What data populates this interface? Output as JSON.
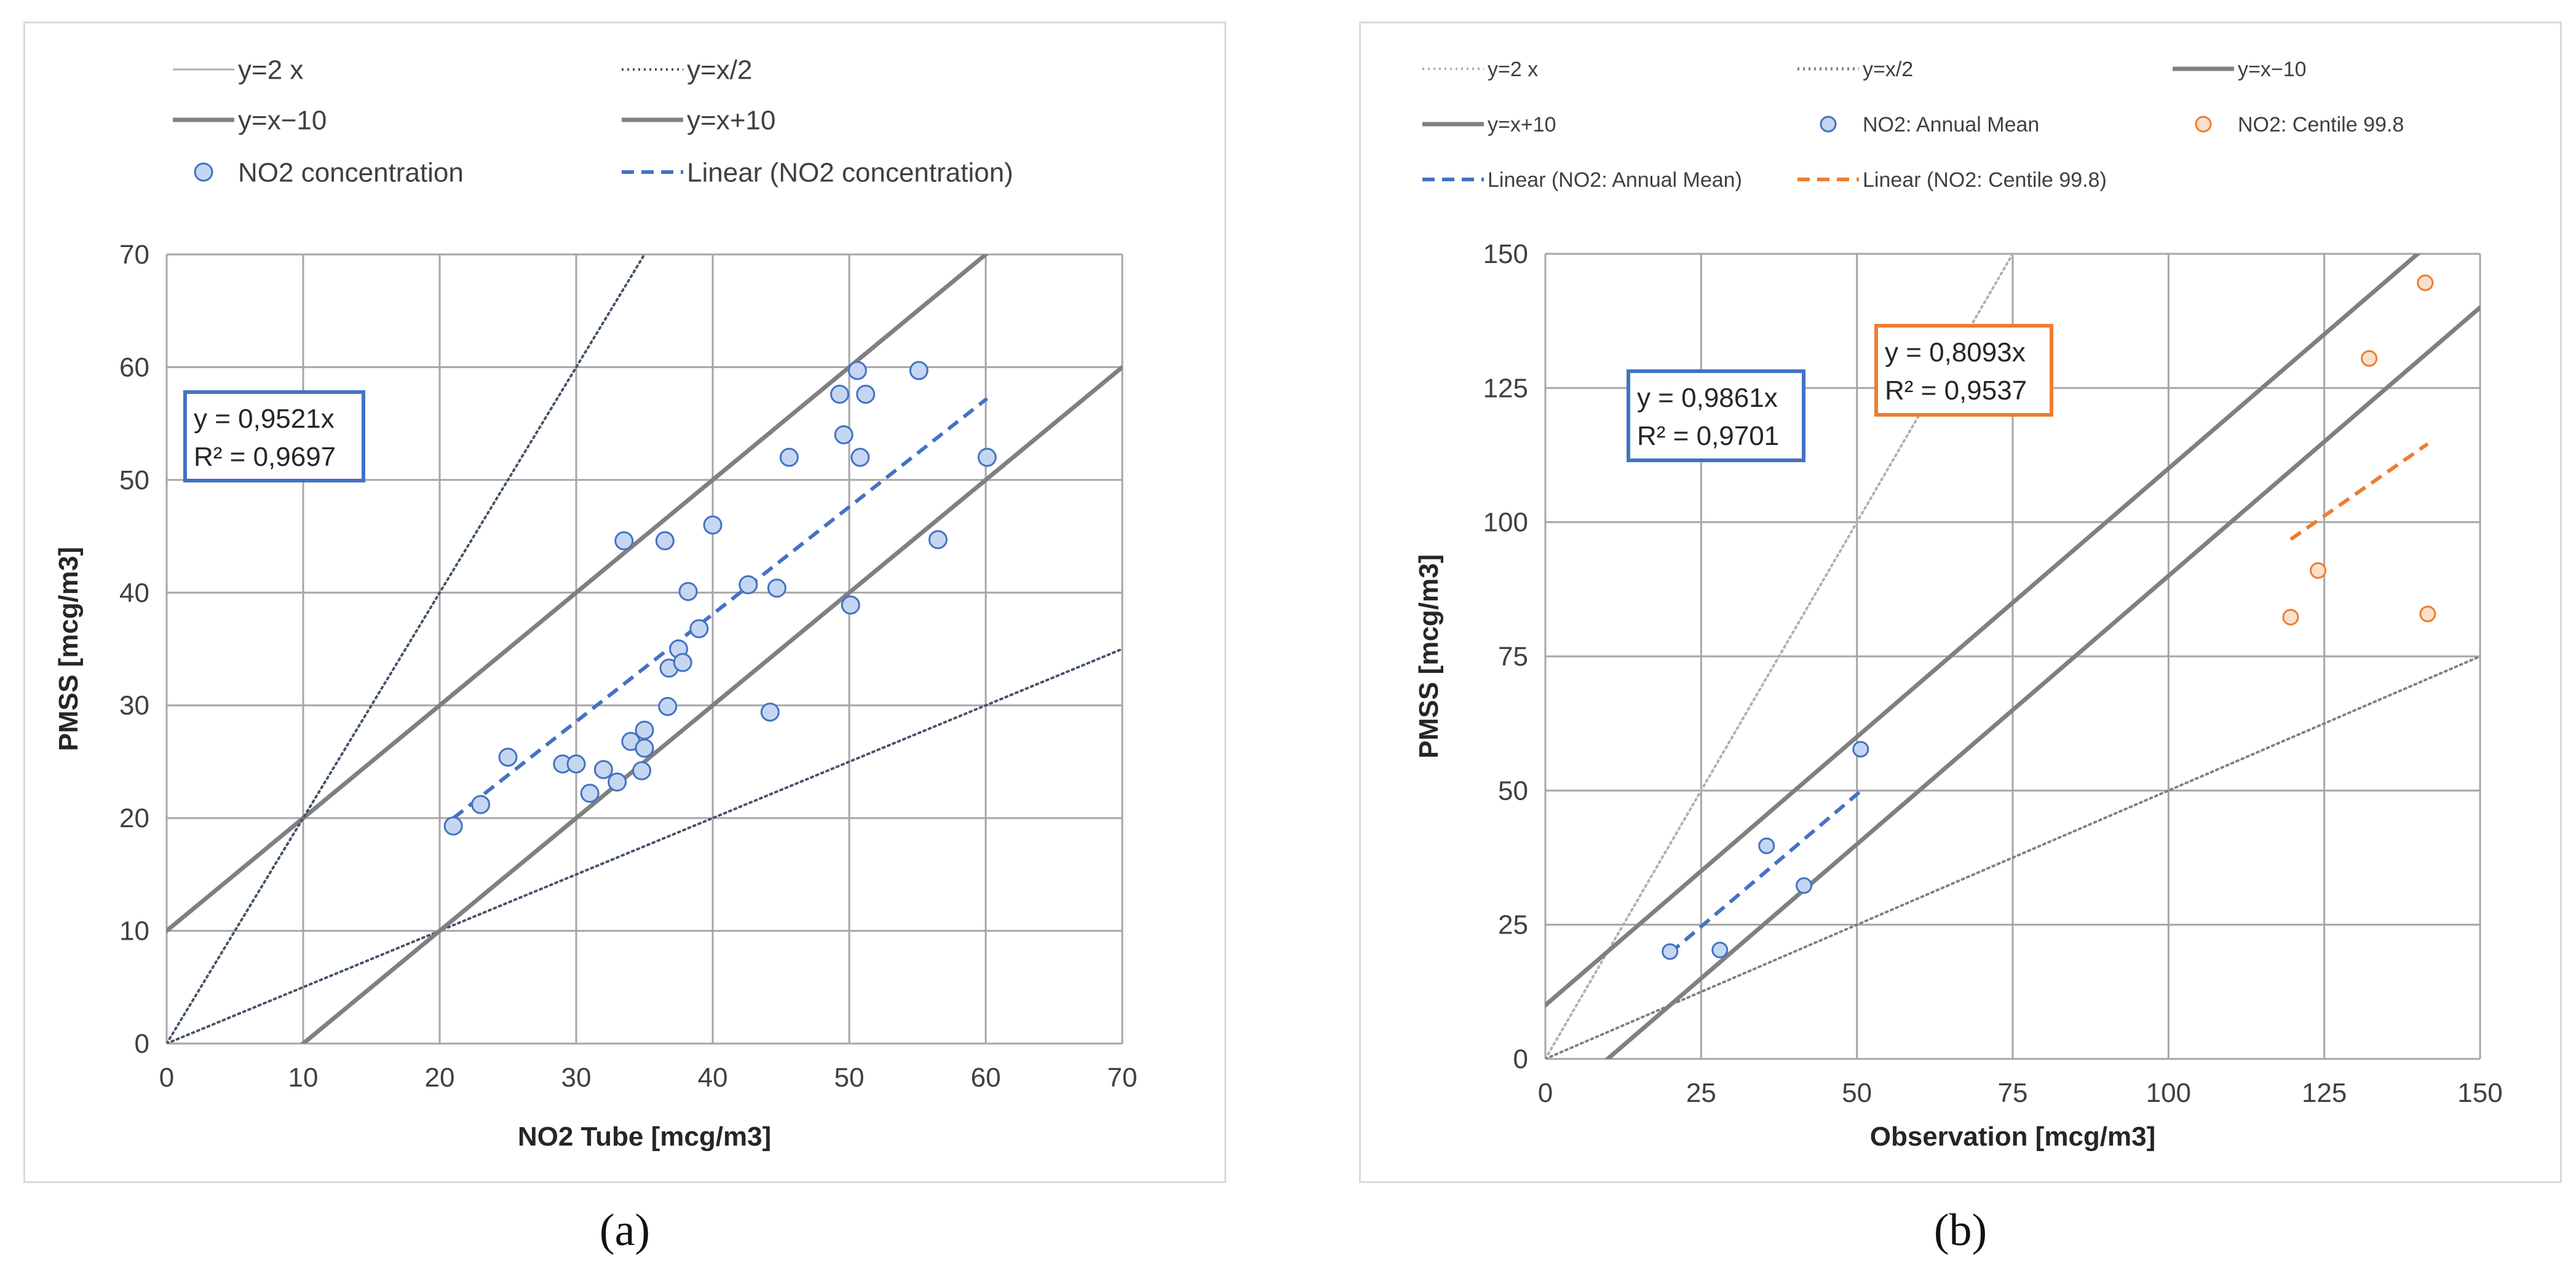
{
  "chart_data": [
    {
      "id": "a",
      "type": "scatter",
      "xlabel": "NO2 Tube [mcg/m3]",
      "ylabel": "PMSS [mcg/m3]",
      "xlim": [
        0,
        70
      ],
      "ylim": [
        0,
        70
      ],
      "xticks": [
        0,
        10,
        20,
        30,
        40,
        50,
        60,
        70
      ],
      "yticks": [
        0,
        10,
        20,
        30,
        40,
        50,
        60,
        70
      ],
      "grid": true,
      "legend_position": "top",
      "reference_lines": [
        {
          "name": "y=2 x",
          "slope": 2,
          "intercept": 0,
          "style": "solid",
          "color": "#b0b0b0",
          "visible": false
        },
        {
          "name": "y=x/2",
          "slope": 0.5,
          "intercept": 0,
          "style": "dotted",
          "color": "#44546a",
          "visible": true
        },
        {
          "name": "y=x−10",
          "slope": 1,
          "intercept": -10,
          "style": "solid",
          "color": "#808080",
          "visible": true
        },
        {
          "name": "y=x+10",
          "slope": 1,
          "intercept": 10,
          "style": "solid",
          "color": "#808080",
          "visible": true
        },
        {
          "name": "",
          "slope": 2,
          "intercept": 0,
          "style": "dotted",
          "color": "#44546a",
          "visible": true
        },
        {
          "name": "",
          "slope": 1,
          "intercept": -10,
          "style": "solid",
          "color": "#808080",
          "visible": true,
          "x_range": [
            10,
            70
          ],
          "duplicate": true
        }
      ],
      "series": [
        {
          "name": "NO2 concentration",
          "marker": "circle",
          "fill": "#c5d7f0",
          "stroke": "#4472c4",
          "points": [
            [
              21,
              19.3
            ],
            [
              23,
              21.2
            ],
            [
              25,
              25.4
            ],
            [
              29,
              24.8
            ],
            [
              30,
              24.8
            ],
            [
              31,
              22.2
            ],
            [
              32,
              24.3
            ],
            [
              33,
              23.2
            ],
            [
              33.5,
              44.6
            ],
            [
              34,
              26.8
            ],
            [
              34.8,
              24.2
            ],
            [
              35,
              26.2
            ],
            [
              35,
              27.8
            ],
            [
              36.5,
              44.6
            ],
            [
              36.7,
              29.9
            ],
            [
              36.8,
              33.3
            ],
            [
              37.5,
              35
            ],
            [
              37.8,
              33.8
            ],
            [
              38.2,
              40.1
            ],
            [
              39,
              36.8
            ],
            [
              40,
              46
            ],
            [
              42.6,
              40.7
            ],
            [
              44.2,
              29.4
            ],
            [
              44.7,
              40.4
            ],
            [
              45.6,
              52
            ],
            [
              49.3,
              57.6
            ],
            [
              49.6,
              54
            ],
            [
              50.1,
              38.9
            ],
            [
              50.6,
              59.7
            ],
            [
              50.8,
              52
            ],
            [
              51.2,
              57.6
            ],
            [
              55.1,
              59.7
            ],
            [
              56.5,
              44.7
            ],
            [
              60.1,
              52
            ]
          ]
        }
      ],
      "trendlines": [
        {
          "name": "Linear (NO2 concentration)",
          "slope": 0.9521,
          "x_range": [
            21,
            60.1
          ],
          "color": "#4472c4",
          "style": "dashed"
        }
      ],
      "annotations": [
        {
          "line1": "y = 0,9521x",
          "line2": "R² = 0,9697",
          "border": "#4472c4"
        }
      ],
      "caption": "(a)"
    },
    {
      "id": "b",
      "type": "scatter",
      "xlabel": "Observation [mcg/m3]",
      "ylabel": "PMSS [mcg/m3]",
      "xlim": [
        0,
        150
      ],
      "ylim": [
        0,
        150
      ],
      "xticks": [
        0,
        25,
        50,
        75,
        100,
        125,
        150
      ],
      "yticks": [
        0,
        25,
        50,
        75,
        100,
        125,
        150
      ],
      "grid": true,
      "legend_position": "top",
      "reference_lines": [
        {
          "name": "y=2 x",
          "slope": 2,
          "intercept": 0,
          "style": "dotted",
          "color": "#b0b0b0",
          "visible": true
        },
        {
          "name": "y=x/2",
          "slope": 0.5,
          "intercept": 0,
          "style": "dotted",
          "color": "#808080",
          "visible": true
        },
        {
          "name": "y=x−10",
          "slope": 1,
          "intercept": -10,
          "style": "solid",
          "color": "#808080",
          "visible": true
        },
        {
          "name": "y=x+10",
          "slope": 1,
          "intercept": 10,
          "style": "solid",
          "color": "#808080",
          "visible": true
        }
      ],
      "series": [
        {
          "name": "NO2: Annual Mean",
          "marker": "circle",
          "fill": "#c5d7f0",
          "stroke": "#4472c4",
          "points": [
            [
              20,
              20
            ],
            [
              28,
              20.3
            ],
            [
              35.5,
              39.7
            ],
            [
              41.5,
              32.3
            ],
            [
              50.6,
              57.7
            ]
          ]
        },
        {
          "name": "NO2: Centile 99.8",
          "marker": "circle",
          "fill": "#fbe0cc",
          "stroke": "#ed7d31",
          "points": [
            [
              119.6,
              82.3
            ],
            [
              124,
              91
            ],
            [
              132.2,
              130.5
            ],
            [
              141.2,
              144.6
            ],
            [
              141.6,
              82.9
            ]
          ]
        }
      ],
      "trendlines": [
        {
          "name": "Linear (NO2: Annual Mean)",
          "slope": 0.9861,
          "x_range": [
            20,
            50.6
          ],
          "color": "#4472c4",
          "style": "dashed"
        },
        {
          "name": "Linear (NO2: Centile 99.8)",
          "slope": 0.8093,
          "x_range": [
            119.6,
            141.6
          ],
          "color": "#ed7d31",
          "style": "dashed"
        }
      ],
      "annotations": [
        {
          "line1": "y = 0,9861x",
          "line2": "R² = 0,9701",
          "border": "#4472c4"
        },
        {
          "line1": "y = 0,8093x",
          "line2": "R² = 0,9537",
          "border": "#ed7d31"
        }
      ],
      "caption": "(b)"
    }
  ]
}
